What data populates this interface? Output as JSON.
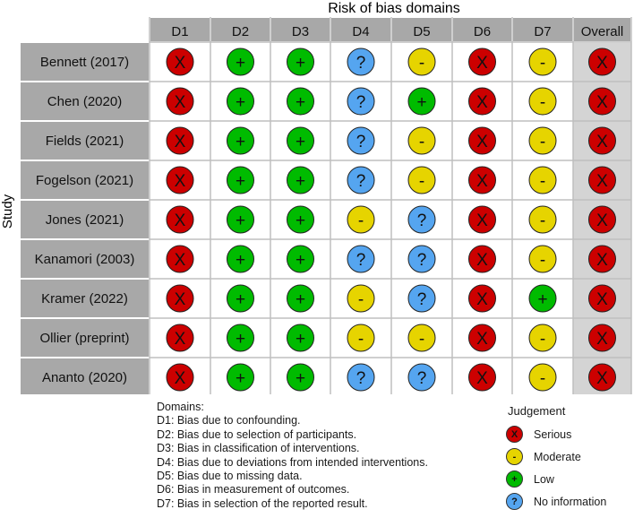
{
  "chart_data": {
    "type": "table",
    "title": "Risk of bias domains",
    "ylabel": "Study",
    "columns": [
      "D1",
      "D2",
      "D3",
      "D4",
      "D5",
      "D6",
      "D7",
      "Overall"
    ],
    "rows": [
      {
        "study": "Bennett (2017)",
        "judgements": [
          "Serious",
          "Low",
          "Low",
          "No information",
          "Moderate",
          "Serious",
          "Moderate",
          "Serious"
        ]
      },
      {
        "study": "Chen (2020)",
        "judgements": [
          "Serious",
          "Low",
          "Low",
          "No information",
          "Low",
          "Serious",
          "Moderate",
          "Serious"
        ]
      },
      {
        "study": "Fields (2021)",
        "judgements": [
          "Serious",
          "Low",
          "Low",
          "No information",
          "Moderate",
          "Serious",
          "Moderate",
          "Serious"
        ]
      },
      {
        "study": "Fogelson (2021)",
        "judgements": [
          "Serious",
          "Low",
          "Low",
          "No information",
          "Moderate",
          "Serious",
          "Moderate",
          "Serious"
        ]
      },
      {
        "study": "Jones (2021)",
        "judgements": [
          "Serious",
          "Low",
          "Low",
          "Moderate",
          "No information",
          "Serious",
          "Moderate",
          "Serious"
        ]
      },
      {
        "study": "Kanamori (2003)",
        "judgements": [
          "Serious",
          "Low",
          "Low",
          "No information",
          "No information",
          "Serious",
          "Moderate",
          "Serious"
        ]
      },
      {
        "study": "Kramer (2022)",
        "judgements": [
          "Serious",
          "Low",
          "Low",
          "Moderate",
          "No information",
          "Serious",
          "Low",
          "Serious"
        ]
      },
      {
        "study": "Ollier (preprint)",
        "judgements": [
          "Serious",
          "Low",
          "Low",
          "Moderate",
          "Moderate",
          "Serious",
          "Moderate",
          "Serious"
        ]
      },
      {
        "study": "Ananto (2020)",
        "judgements": [
          "Serious",
          "Low",
          "Low",
          "No information",
          "No information",
          "Serious",
          "Moderate",
          "Serious"
        ]
      }
    ],
    "domains_heading": "Domains:",
    "domain_descriptions": [
      "D1: Bias due to confounding.",
      "D2: Bias due to selection of participants.",
      "D3: Bias in classification of interventions.",
      "D4: Bias due to deviations from intended interventions.",
      "D5: Bias due to missing data.",
      "D6: Bias in measurement of outcomes.",
      "D7: Bias in selection of the reported result."
    ],
    "legend_title": "Judgement",
    "legend": [
      {
        "label": "Serious",
        "symbol": "X",
        "color": "#cc0000"
      },
      {
        "label": "Moderate",
        "symbol": "-",
        "color": "#e6d400"
      },
      {
        "label": "Low",
        "symbol": "+",
        "color": "#00bb00"
      },
      {
        "label": "No information",
        "symbol": "?",
        "color": "#55a5f0"
      }
    ]
  }
}
